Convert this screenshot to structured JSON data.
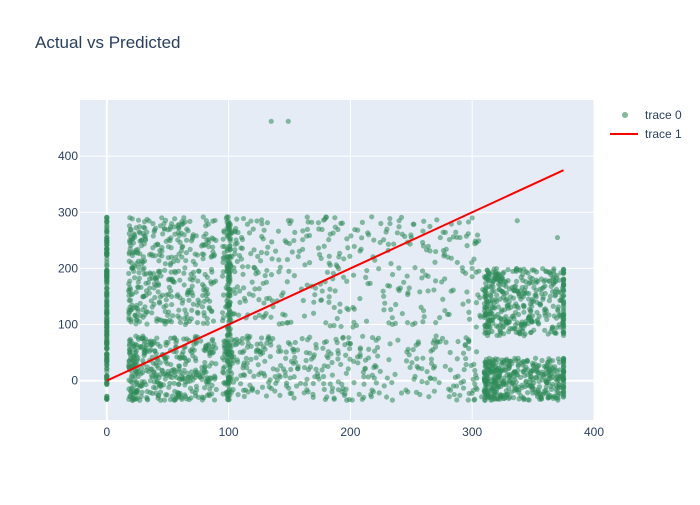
{
  "chart_data": {
    "type": "scatter",
    "title": "Actual vs Predicted",
    "xlabel": "",
    "ylabel": "",
    "xlim": [
      -22,
      400
    ],
    "ylim": [
      -70,
      500
    ],
    "x_ticks": [
      0,
      100,
      200,
      300,
      400
    ],
    "y_ticks": [
      0,
      100,
      200,
      300,
      400
    ],
    "grid": true,
    "legend_position": "top-right",
    "series": [
      {
        "name": "trace 0",
        "mode": "markers",
        "color": "#2e8b57",
        "description": "dense scatter of actual vs predicted values",
        "clusters": [
          {
            "x": [
              0,
              0
            ],
            "y": [
              -35,
              292
            ]
          },
          {
            "x": [
              18,
              90
            ],
            "y": [
              100,
              292
            ]
          },
          {
            "x": [
              18,
              90
            ],
            "y": [
              -35,
              80
            ]
          },
          {
            "x": [
              95,
              310
            ],
            "y": [
              95,
              292
            ]
          },
          {
            "x": [
              95,
              310
            ],
            "y": [
              -35,
              80
            ]
          },
          {
            "x": [
              310,
              375
            ],
            "y": [
              80,
              200
            ]
          },
          {
            "x": [
              310,
              375
            ],
            "y": [
              -35,
              40
            ]
          }
        ],
        "points": [
          {
            "x": 135,
            "y": 462
          },
          {
            "x": 149,
            "y": 462
          },
          {
            "x": 375,
            "y": 192
          },
          {
            "x": 370,
            "y": 255
          },
          {
            "x": 337,
            "y": 285
          },
          {
            "x": 375,
            "y": 180
          },
          {
            "x": 360,
            "y": 128
          },
          {
            "x": 290,
            "y": 255
          },
          {
            "x": 260,
            "y": 240
          },
          {
            "x": 225,
            "y": 280
          },
          {
            "x": 240,
            "y": 285
          },
          {
            "x": 250,
            "y": 255
          },
          {
            "x": 230,
            "y": 270
          },
          {
            "x": 215,
            "y": 260
          },
          {
            "x": 300,
            "y": 200
          },
          {
            "x": 320,
            "y": 180
          },
          {
            "x": 335,
            "y": 160
          },
          {
            "x": 280,
            "y": 220
          },
          {
            "x": 270,
            "y": 230
          }
        ]
      },
      {
        "name": "trace 1",
        "mode": "lines",
        "color": "#ff0000",
        "x": [
          0,
          375
        ],
        "y": [
          0,
          375
        ]
      }
    ]
  }
}
